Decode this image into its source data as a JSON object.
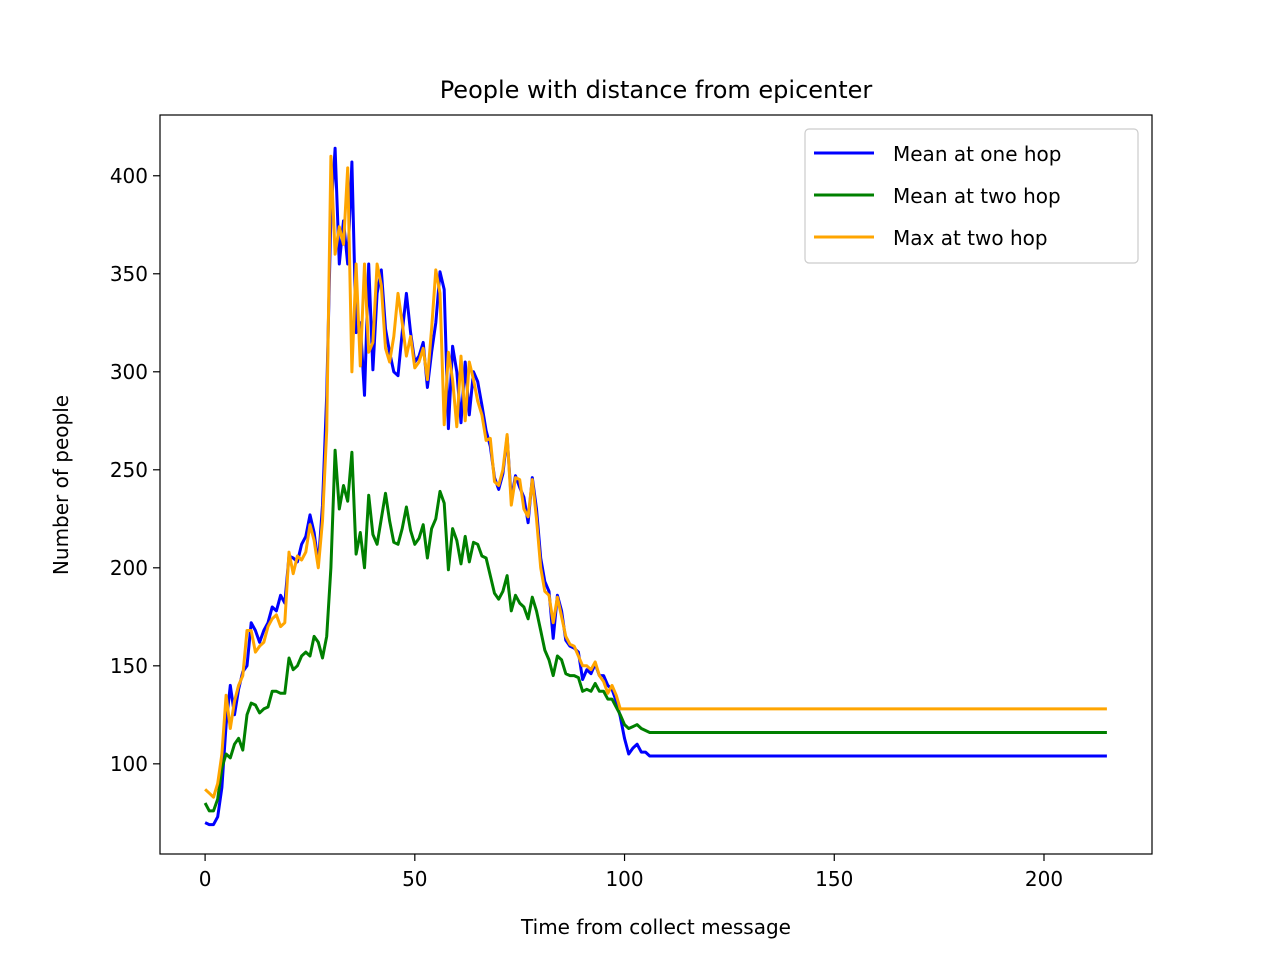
{
  "chart_data": {
    "type": "line",
    "title": "People with distance from epicenter",
    "xlabel": "Time from collect message",
    "ylabel": "Number of people",
    "xlim": [
      -10.75,
      225.75
    ],
    "ylim": [
      54,
      431
    ],
    "xticks": [
      0,
      50,
      100,
      150,
      200
    ],
    "yticks": [
      100,
      150,
      200,
      250,
      300,
      350,
      400
    ],
    "grid": false,
    "legend_position": "top-right",
    "series": [
      {
        "name": "Mean at one hop",
        "color": "#0000ff",
        "points": [
          [
            0,
            70
          ],
          [
            1,
            69
          ],
          [
            2,
            69
          ],
          [
            3,
            73
          ],
          [
            4,
            88
          ],
          [
            5,
            120
          ],
          [
            6,
            140
          ],
          [
            7,
            125
          ],
          [
            8,
            138
          ],
          [
            9,
            147
          ],
          [
            10,
            150
          ],
          [
            11,
            172
          ],
          [
            12,
            168
          ],
          [
            13,
            162
          ],
          [
            14,
            168
          ],
          [
            15,
            172
          ],
          [
            16,
            180
          ],
          [
            17,
            178
          ],
          [
            18,
            186
          ],
          [
            19,
            182
          ],
          [
            20,
            206
          ],
          [
            21,
            205
          ],
          [
            22,
            203
          ],
          [
            23,
            212
          ],
          [
            24,
            216
          ],
          [
            25,
            227
          ],
          [
            26,
            218
          ],
          [
            27,
            202
          ],
          [
            28,
            232
          ],
          [
            29,
            288
          ],
          [
            30,
            380
          ],
          [
            31,
            414
          ],
          [
            32,
            355
          ],
          [
            33,
            377
          ],
          [
            34,
            355
          ],
          [
            35,
            407
          ],
          [
            36,
            320
          ],
          [
            37,
            325
          ],
          [
            38,
            288
          ],
          [
            39,
            355
          ],
          [
            40,
            301
          ],
          [
            41,
            340
          ],
          [
            42,
            352
          ],
          [
            43,
            322
          ],
          [
            44,
            310
          ],
          [
            45,
            300
          ],
          [
            46,
            298
          ],
          [
            47,
            320
          ],
          [
            48,
            340
          ],
          [
            49,
            320
          ],
          [
            50,
            305
          ],
          [
            51,
            308
          ],
          [
            52,
            315
          ],
          [
            53,
            292
          ],
          [
            54,
            310
          ],
          [
            55,
            325
          ],
          [
            56,
            351
          ],
          [
            57,
            342
          ],
          [
            58,
            271
          ],
          [
            59,
            313
          ],
          [
            60,
            300
          ],
          [
            61,
            274
          ],
          [
            62,
            305
          ],
          [
            63,
            278
          ],
          [
            64,
            300
          ],
          [
            65,
            295
          ],
          [
            66,
            283
          ],
          [
            67,
            270
          ],
          [
            68,
            262
          ],
          [
            69,
            246
          ],
          [
            70,
            240
          ],
          [
            71,
            248
          ],
          [
            72,
            267
          ],
          [
            73,
            235
          ],
          [
            74,
            247
          ],
          [
            75,
            241
          ],
          [
            76,
            236
          ],
          [
            77,
            223
          ],
          [
            78,
            246
          ],
          [
            79,
            230
          ],
          [
            80,
            205
          ],
          [
            81,
            193
          ],
          [
            82,
            188
          ],
          [
            83,
            164
          ],
          [
            84,
            186
          ],
          [
            85,
            178
          ],
          [
            86,
            163
          ],
          [
            87,
            160
          ],
          [
            88,
            159
          ],
          [
            89,
            157
          ],
          [
            90,
            143
          ],
          [
            91,
            148
          ],
          [
            92,
            146
          ],
          [
            93,
            151
          ],
          [
            94,
            145
          ],
          [
            95,
            145
          ],
          [
            96,
            140
          ],
          [
            97,
            138
          ],
          [
            98,
            132
          ],
          [
            99,
            124
          ],
          [
            100,
            113
          ],
          [
            101,
            105
          ],
          [
            102,
            108
          ],
          [
            103,
            110
          ],
          [
            104,
            106
          ],
          [
            105,
            106
          ],
          [
            106,
            104
          ],
          [
            107,
            104
          ],
          [
            110,
            104
          ],
          [
            150,
            104
          ],
          [
            200,
            104
          ],
          [
            215,
            104
          ]
        ]
      },
      {
        "name": "Mean at two hop",
        "color": "#008000",
        "points": [
          [
            0,
            80
          ],
          [
            1,
            76
          ],
          [
            2,
            76
          ],
          [
            3,
            82
          ],
          [
            4,
            98
          ],
          [
            5,
            105
          ],
          [
            6,
            103
          ],
          [
            7,
            110
          ],
          [
            8,
            113
          ],
          [
            9,
            107
          ],
          [
            10,
            125
          ],
          [
            11,
            131
          ],
          [
            12,
            130
          ],
          [
            13,
            126
          ],
          [
            14,
            128
          ],
          [
            15,
            129
          ],
          [
            16,
            137
          ],
          [
            17,
            137
          ],
          [
            18,
            136
          ],
          [
            19,
            136
          ],
          [
            20,
            154
          ],
          [
            21,
            148
          ],
          [
            22,
            150
          ],
          [
            23,
            155
          ],
          [
            24,
            157
          ],
          [
            25,
            155
          ],
          [
            26,
            165
          ],
          [
            27,
            162
          ],
          [
            28,
            154
          ],
          [
            29,
            165
          ],
          [
            30,
            200
          ],
          [
            31,
            260
          ],
          [
            32,
            230
          ],
          [
            33,
            242
          ],
          [
            34,
            234
          ],
          [
            35,
            259
          ],
          [
            36,
            207
          ],
          [
            37,
            218
          ],
          [
            38,
            200
          ],
          [
            39,
            237
          ],
          [
            40,
            217
          ],
          [
            41,
            212
          ],
          [
            42,
            225
          ],
          [
            43,
            238
          ],
          [
            44,
            224
          ],
          [
            45,
            213
          ],
          [
            46,
            212
          ],
          [
            47,
            220
          ],
          [
            48,
            231
          ],
          [
            49,
            219
          ],
          [
            50,
            212
          ],
          [
            51,
            215
          ],
          [
            52,
            222
          ],
          [
            53,
            205
          ],
          [
            54,
            220
          ],
          [
            55,
            225
          ],
          [
            56,
            239
          ],
          [
            57,
            233
          ],
          [
            58,
            199
          ],
          [
            59,
            220
          ],
          [
            60,
            214
          ],
          [
            61,
            202
          ],
          [
            62,
            216
          ],
          [
            63,
            203
          ],
          [
            64,
            213
          ],
          [
            65,
            212
          ],
          [
            66,
            206
          ],
          [
            67,
            205
          ],
          [
            68,
            196
          ],
          [
            69,
            187
          ],
          [
            70,
            184
          ],
          [
            71,
            188
          ],
          [
            72,
            196
          ],
          [
            73,
            178
          ],
          [
            74,
            186
          ],
          [
            75,
            182
          ],
          [
            76,
            180
          ],
          [
            77,
            174
          ],
          [
            78,
            185
          ],
          [
            79,
            178
          ],
          [
            80,
            168
          ],
          [
            81,
            158
          ],
          [
            82,
            153
          ],
          [
            83,
            145
          ],
          [
            84,
            155
          ],
          [
            85,
            153
          ],
          [
            86,
            146
          ],
          [
            87,
            145
          ],
          [
            88,
            145
          ],
          [
            89,
            144
          ],
          [
            90,
            137
          ],
          [
            91,
            138
          ],
          [
            92,
            137
          ],
          [
            93,
            141
          ],
          [
            94,
            137
          ],
          [
            95,
            137
          ],
          [
            96,
            133
          ],
          [
            97,
            133
          ],
          [
            98,
            129
          ],
          [
            99,
            125
          ],
          [
            100,
            120
          ],
          [
            101,
            118
          ],
          [
            102,
            119
          ],
          [
            103,
            120
          ],
          [
            104,
            118
          ],
          [
            105,
            117
          ],
          [
            106,
            116
          ],
          [
            107,
            116
          ],
          [
            110,
            116
          ],
          [
            150,
            116
          ],
          [
            200,
            116
          ],
          [
            215,
            116
          ]
        ]
      },
      {
        "name": "Max at two hop",
        "color": "#ffa500",
        "points": [
          [
            0,
            87
          ],
          [
            1,
            85
          ],
          [
            2,
            83
          ],
          [
            3,
            90
          ],
          [
            4,
            105
          ],
          [
            5,
            135
          ],
          [
            6,
            118
          ],
          [
            7,
            132
          ],
          [
            8,
            140
          ],
          [
            9,
            145
          ],
          [
            10,
            168
          ],
          [
            11,
            168
          ],
          [
            12,
            157
          ],
          [
            13,
            160
          ],
          [
            14,
            162
          ],
          [
            15,
            170
          ],
          [
            16,
            174
          ],
          [
            17,
            176
          ],
          [
            18,
            170
          ],
          [
            19,
            172
          ],
          [
            20,
            208
          ],
          [
            21,
            197
          ],
          [
            22,
            206
          ],
          [
            23,
            204
          ],
          [
            24,
            208
          ],
          [
            25,
            222
          ],
          [
            26,
            214
          ],
          [
            27,
            200
          ],
          [
            28,
            224
          ],
          [
            29,
            270
          ],
          [
            30,
            410
          ],
          [
            31,
            360
          ],
          [
            32,
            374
          ],
          [
            33,
            365
          ],
          [
            34,
            404
          ],
          [
            35,
            300
          ],
          [
            36,
            355
          ],
          [
            37,
            303
          ],
          [
            38,
            355
          ],
          [
            39,
            310
          ],
          [
            40,
            315
          ],
          [
            41,
            355
          ],
          [
            42,
            344
          ],
          [
            43,
            312
          ],
          [
            44,
            305
          ],
          [
            45,
            318
          ],
          [
            46,
            340
          ],
          [
            47,
            325
          ],
          [
            48,
            308
          ],
          [
            49,
            318
          ],
          [
            50,
            302
          ],
          [
            51,
            305
          ],
          [
            52,
            312
          ],
          [
            53,
            296
          ],
          [
            54,
            322
          ],
          [
            55,
            352
          ],
          [
            56,
            340
          ],
          [
            57,
            273
          ],
          [
            58,
            310
          ],
          [
            59,
            296
          ],
          [
            60,
            272
          ],
          [
            61,
            308
          ],
          [
            62,
            275
          ],
          [
            63,
            305
          ],
          [
            64,
            296
          ],
          [
            65,
            285
          ],
          [
            66,
            278
          ],
          [
            67,
            265
          ],
          [
            68,
            266
          ],
          [
            69,
            244
          ],
          [
            70,
            242
          ],
          [
            71,
            250
          ],
          [
            72,
            268
          ],
          [
            73,
            232
          ],
          [
            74,
            246
          ],
          [
            75,
            245
          ],
          [
            76,
            230
          ],
          [
            77,
            226
          ],
          [
            78,
            245
          ],
          [
            79,
            225
          ],
          [
            80,
            200
          ],
          [
            81,
            188
          ],
          [
            82,
            186
          ],
          [
            83,
            172
          ],
          [
            84,
            185
          ],
          [
            85,
            175
          ],
          [
            86,
            165
          ],
          [
            87,
            161
          ],
          [
            88,
            160
          ],
          [
            89,
            155
          ],
          [
            90,
            150
          ],
          [
            91,
            150
          ],
          [
            92,
            148
          ],
          [
            93,
            152
          ],
          [
            94,
            145
          ],
          [
            95,
            142
          ],
          [
            96,
            136
          ],
          [
            97,
            140
          ],
          [
            98,
            135
          ],
          [
            99,
            128
          ],
          [
            100,
            128
          ],
          [
            105,
            128
          ],
          [
            110,
            128
          ],
          [
            150,
            128
          ],
          [
            200,
            128
          ],
          [
            215,
            128
          ]
        ]
      }
    ]
  }
}
